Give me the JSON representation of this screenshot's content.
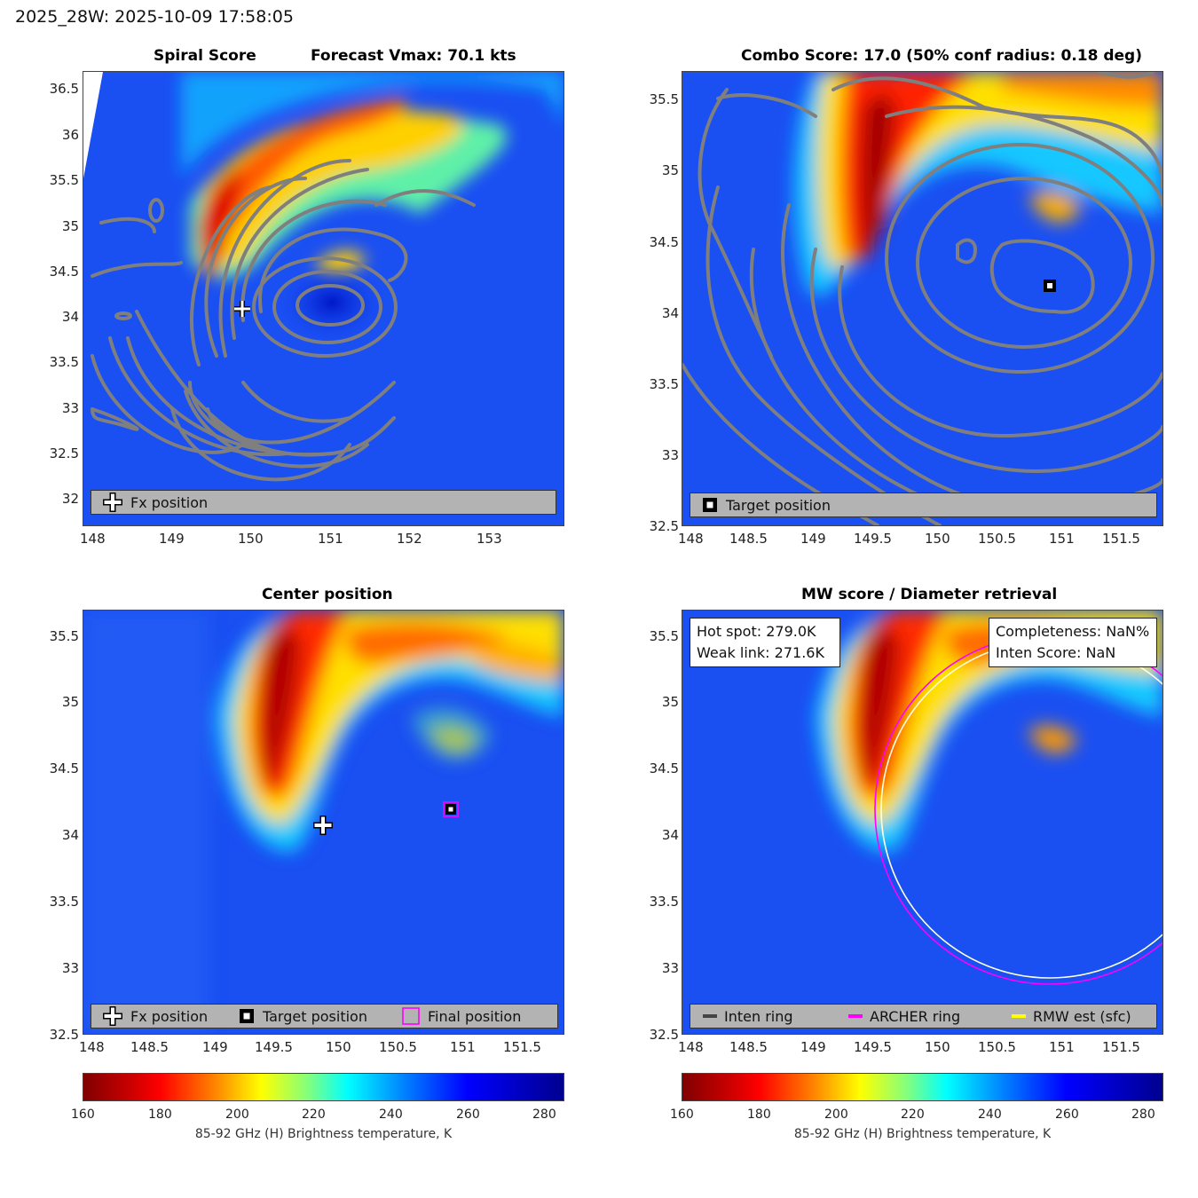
{
  "figure_title": "2025_28W: 2025-10-09 17:58:05",
  "panels": {
    "spiral": {
      "title_left": "Spiral Score",
      "title_right": "Forecast Vmax: 70.1 kts",
      "legend": [
        "Fx position"
      ]
    },
    "combo": {
      "title": "Combo Score: 17.0  (50% conf radius: 0.18 deg)",
      "legend": [
        "Target position"
      ]
    },
    "center": {
      "title": "Center position",
      "legend": [
        "Fx position",
        "Target position",
        "Final position"
      ]
    },
    "mw": {
      "title": "MW score / Diameter retrieval",
      "box_left": [
        "Hot spot: 279.0K",
        "Weak link: 271.6K"
      ],
      "box_right": [
        "Completeness: NaN%",
        "Inten Score: NaN"
      ],
      "legend": [
        "Inten ring",
        "ARCHER ring",
        "RMW est (sfc)"
      ],
      "legend_colors": [
        "#444444",
        "#ff00ff",
        "#ffff00"
      ]
    }
  },
  "colorbar": {
    "label": "85-92 GHz (H) Brightness temperature, K",
    "ticks": [
      "160",
      "180",
      "200",
      "220",
      "240",
      "260",
      "280"
    ],
    "range": [
      160,
      285
    ]
  },
  "chart_data": [
    {
      "type": "heatmap",
      "title": "Spiral Score",
      "annotation": "Forecast Vmax: 70.1 kts",
      "x_ticks": [
        "148",
        "149",
        "150",
        "151",
        "152",
        "153"
      ],
      "y_ticks": [
        "36.5",
        "36",
        "35.5",
        "35",
        "34.5",
        "34",
        "33.5",
        "33",
        "32.5",
        "32"
      ],
      "xlim": [
        147.9,
        153.95
      ],
      "ylim": [
        31.7,
        36.7
      ],
      "fx_position": {
        "lon": 149.9,
        "lat": 34.1
      },
      "contour_center": {
        "lon": 151.0,
        "lat": 34.2
      }
    },
    {
      "type": "heatmap",
      "title": "Combo Score: 17.0  (50% conf radius: 0.18 deg)",
      "x_ticks": [
        "148",
        "148.5",
        "149",
        "149.5",
        "150",
        "150.5",
        "151",
        "151.5"
      ],
      "y_ticks": [
        "35.5",
        "35",
        "34.5",
        "34",
        "33.5",
        "33",
        "32.5"
      ],
      "xlim": [
        147.95,
        151.8
      ],
      "ylim": [
        32.5,
        35.7
      ],
      "target_position": {
        "lon": 150.91,
        "lat": 34.2
      }
    },
    {
      "type": "heatmap",
      "title": "Center position",
      "x_ticks": [
        "148",
        "148.5",
        "149",
        "149.5",
        "150",
        "150.5",
        "151",
        "151.5"
      ],
      "y_ticks": [
        "35.5",
        "35",
        "34.5",
        "34",
        "33.5",
        "33",
        "32.5"
      ],
      "xlim": [
        147.95,
        151.8
      ],
      "ylim": [
        32.5,
        35.7
      ],
      "fx_position": {
        "lon": 149.9,
        "lat": 34.1
      },
      "target_position": {
        "lon": 150.91,
        "lat": 34.2
      },
      "final_position": {
        "lon": 150.91,
        "lat": 34.2
      }
    },
    {
      "type": "heatmap",
      "title": "MW score / Diameter retrieval",
      "x_ticks": [
        "148",
        "148.5",
        "149",
        "149.5",
        "150",
        "150.5",
        "151",
        "151.5"
      ],
      "y_ticks": [
        "35.5",
        "35",
        "34.5",
        "34",
        "33.5",
        "33",
        "32.5"
      ],
      "xlim": [
        147.95,
        151.8
      ],
      "ylim": [
        32.5,
        35.7
      ],
      "archer_ring": {
        "center_lon": 150.91,
        "center_lat": 34.2,
        "radius_deg": 1.17
      },
      "rmw_ring": {
        "center_lon": 150.91,
        "center_lat": 34.2,
        "radius_deg": 1.13
      }
    }
  ]
}
